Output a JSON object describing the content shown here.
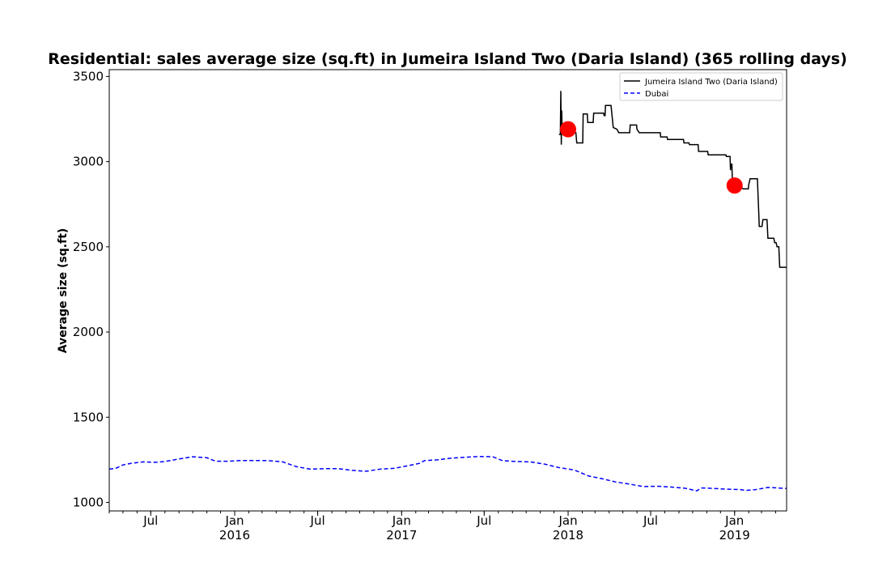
{
  "chart_data": {
    "type": "line",
    "title": "Residential: sales average size (sq.ft) in Jumeira Island Two (Daria Island) (365 rolling days)",
    "xlabel": "",
    "ylabel": "Average size (sq.ft)",
    "xlim": [
      "2015-04-01",
      "2019-04-25"
    ],
    "ylim": [
      950,
      3540
    ],
    "yticks": [
      1000,
      1500,
      2000,
      2500,
      3000,
      3500
    ],
    "xticks": [
      {
        "date": "2015-07-01",
        "label": "Jul",
        "sub": ""
      },
      {
        "date": "2016-01-01",
        "label": "Jan",
        "sub": "2016"
      },
      {
        "date": "2016-07-01",
        "label": "Jul",
        "sub": ""
      },
      {
        "date": "2017-01-01",
        "label": "Jan",
        "sub": "2017"
      },
      {
        "date": "2017-07-01",
        "label": "Jul",
        "sub": ""
      },
      {
        "date": "2018-01-01",
        "label": "Jan",
        "sub": "2018"
      },
      {
        "date": "2018-07-01",
        "label": "Jul",
        "sub": ""
      },
      {
        "date": "2019-01-01",
        "label": "Jan",
        "sub": "2019"
      }
    ],
    "legend_position": "top-right",
    "series": [
      {
        "name": "Jumeira Island Two (Daria Island)",
        "color": "#000000",
        "style": "solid",
        "points": [
          [
            "2017-12-12",
            3160
          ],
          [
            "2017-12-15",
            3160
          ],
          [
            "2017-12-16",
            3415
          ],
          [
            "2017-12-17",
            3100
          ],
          [
            "2017-12-18",
            3300
          ],
          [
            "2017-12-19",
            3180
          ],
          [
            "2017-12-28",
            3180
          ],
          [
            "2018-01-08",
            3180
          ],
          [
            "2018-01-10",
            3170
          ],
          [
            "2018-01-18",
            3170
          ],
          [
            "2018-01-20",
            3110
          ],
          [
            "2018-02-02",
            3110
          ],
          [
            "2018-02-03",
            3280
          ],
          [
            "2018-02-12",
            3280
          ],
          [
            "2018-02-13",
            3230
          ],
          [
            "2018-02-25",
            3230
          ],
          [
            "2018-02-26",
            3285
          ],
          [
            "2018-03-20",
            3285
          ],
          [
            "2018-03-21",
            3270
          ],
          [
            "2018-03-23",
            3270
          ],
          [
            "2018-03-24",
            3330
          ],
          [
            "2018-04-05",
            3330
          ],
          [
            "2018-04-07",
            3280
          ],
          [
            "2018-04-10",
            3200
          ],
          [
            "2018-04-18",
            3190
          ],
          [
            "2018-04-22",
            3170
          ],
          [
            "2018-05-16",
            3170
          ],
          [
            "2018-05-17",
            3215
          ],
          [
            "2018-05-31",
            3215
          ],
          [
            "2018-06-01",
            3190
          ],
          [
            "2018-06-06",
            3170
          ],
          [
            "2018-07-10",
            3170
          ],
          [
            "2018-07-22",
            3170
          ],
          [
            "2018-07-23",
            3145
          ],
          [
            "2018-08-06",
            3145
          ],
          [
            "2018-08-07",
            3130
          ],
          [
            "2018-09-11",
            3130
          ],
          [
            "2018-09-12",
            3110
          ],
          [
            "2018-09-23",
            3110
          ],
          [
            "2018-09-24",
            3100
          ],
          [
            "2018-10-13",
            3100
          ],
          [
            "2018-10-14",
            3060
          ],
          [
            "2018-11-03",
            3060
          ],
          [
            "2018-11-04",
            3040
          ],
          [
            "2018-12-13",
            3040
          ],
          [
            "2018-12-14",
            3030
          ],
          [
            "2018-12-22",
            3030
          ],
          [
            "2018-12-23",
            2950
          ],
          [
            "2018-12-24",
            2985
          ],
          [
            "2018-12-26",
            2985
          ],
          [
            "2018-12-27",
            2900
          ],
          [
            "2019-01-09",
            2860
          ],
          [
            "2019-01-20",
            2840
          ],
          [
            "2019-01-31",
            2840
          ],
          [
            "2019-02-01",
            2865
          ],
          [
            "2019-02-04",
            2900
          ],
          [
            "2019-02-20",
            2900
          ],
          [
            "2019-02-23",
            2700
          ],
          [
            "2019-02-24",
            2620
          ],
          [
            "2019-03-02",
            2620
          ],
          [
            "2019-03-04",
            2660
          ],
          [
            "2019-03-13",
            2660
          ],
          [
            "2019-03-15",
            2550
          ],
          [
            "2019-03-28",
            2550
          ],
          [
            "2019-03-30",
            2525
          ],
          [
            "2019-04-02",
            2525
          ],
          [
            "2019-04-04",
            2500
          ],
          [
            "2019-04-08",
            2500
          ],
          [
            "2019-04-10",
            2380
          ],
          [
            "2019-04-25",
            2380
          ]
        ]
      },
      {
        "name": "Dubai",
        "color": "#0000ff",
        "style": "dashed",
        "points": [
          [
            "2015-04-01",
            1195
          ],
          [
            "2015-04-15",
            1200
          ],
          [
            "2015-05-01",
            1220
          ],
          [
            "2015-05-20",
            1230
          ],
          [
            "2015-06-15",
            1238
          ],
          [
            "2015-07-10",
            1235
          ],
          [
            "2015-08-01",
            1240
          ],
          [
            "2015-09-01",
            1255
          ],
          [
            "2015-10-01",
            1268
          ],
          [
            "2015-11-01",
            1262
          ],
          [
            "2015-11-20",
            1242
          ],
          [
            "2015-12-20",
            1242
          ],
          [
            "2016-01-15",
            1246
          ],
          [
            "2016-02-15",
            1246
          ],
          [
            "2016-03-15",
            1245
          ],
          [
            "2016-04-15",
            1238
          ],
          [
            "2016-05-15",
            1210
          ],
          [
            "2016-06-15",
            1195
          ],
          [
            "2016-07-15",
            1198
          ],
          [
            "2016-08-15",
            1198
          ],
          [
            "2016-09-15",
            1188
          ],
          [
            "2016-10-15",
            1183
          ],
          [
            "2016-11-15",
            1195
          ],
          [
            "2016-12-15",
            1200
          ],
          [
            "2017-01-15",
            1215
          ],
          [
            "2017-02-10",
            1230
          ],
          [
            "2017-02-20",
            1245
          ],
          [
            "2017-03-20",
            1250
          ],
          [
            "2017-04-20",
            1260
          ],
          [
            "2017-05-20",
            1265
          ],
          [
            "2017-06-20",
            1270
          ],
          [
            "2017-07-20",
            1268
          ],
          [
            "2017-08-10",
            1245
          ],
          [
            "2017-09-10",
            1240
          ],
          [
            "2017-10-10",
            1238
          ],
          [
            "2017-11-10",
            1225
          ],
          [
            "2017-12-10",
            1205
          ],
          [
            "2018-01-15",
            1190
          ],
          [
            "2018-02-15",
            1155
          ],
          [
            "2018-03-15",
            1140
          ],
          [
            "2018-04-15",
            1120
          ],
          [
            "2018-05-15",
            1108
          ],
          [
            "2018-06-15",
            1093
          ],
          [
            "2018-07-15",
            1095
          ],
          [
            "2018-08-15",
            1090
          ],
          [
            "2018-09-15",
            1083
          ],
          [
            "2018-10-10",
            1068
          ],
          [
            "2018-10-20",
            1085
          ],
          [
            "2018-11-15",
            1082
          ],
          [
            "2018-12-15",
            1078
          ],
          [
            "2019-01-15",
            1075
          ],
          [
            "2019-01-25",
            1070
          ],
          [
            "2019-02-15",
            1075
          ],
          [
            "2019-03-15",
            1088
          ],
          [
            "2019-04-25",
            1082
          ]
        ]
      }
    ],
    "markers": [
      {
        "date": "2018-01-01",
        "value": 3190,
        "color": "#ff0000"
      },
      {
        "date": "2019-01-01",
        "value": 2860,
        "color": "#ff0000"
      }
    ]
  }
}
